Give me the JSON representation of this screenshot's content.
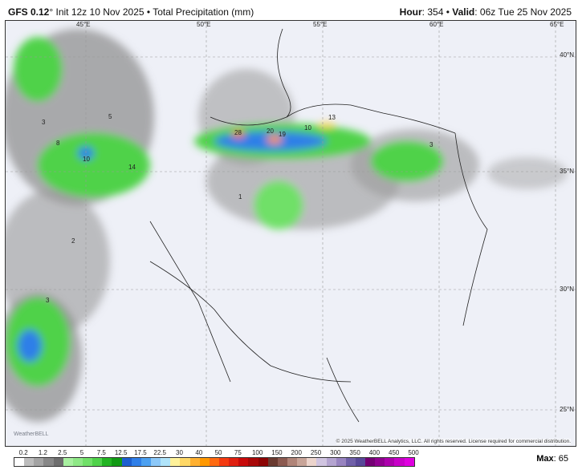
{
  "header": {
    "model": "GFS 0.12",
    "model_suffix": "° Init 12z 10 Nov 2025 • Total Precipitation (mm)",
    "hour_label": "Hour",
    "hour_value": ": 354 • ",
    "valid_label": "Valid",
    "valid_value": ": 06z Tue 25 Nov 2025"
  },
  "map": {
    "lon_labels": [
      "45°E",
      "50°E",
      "55°E",
      "60°E",
      "65°E"
    ],
    "lat_labels": [
      "40°N",
      "35°N",
      "30°N",
      "25°N"
    ],
    "contour_labels": [
      "28",
      "20",
      "19",
      "10",
      "13",
      "10",
      "14",
      "5",
      "3",
      "8",
      "3",
      "2",
      "1",
      "3"
    ],
    "copyright": "© 2025 WeatherBELL Analytics, LLC. All rights reserved. License required for commercial distribution.",
    "logo": "WeatherBELL"
  },
  "legend": {
    "ticks": [
      "0.2",
      "1.2",
      "2.5",
      "5",
      "7.5",
      "12.5",
      "17.5",
      "22.5",
      "30",
      "40",
      "50",
      "75",
      "100",
      "150",
      "200",
      "250",
      "300",
      "350",
      "400",
      "450",
      "500"
    ],
    "colors": [
      "#ffffff",
      "#bdbdbd",
      "#a3a3a3",
      "#878787",
      "#6e6e6e",
      "#a8f0a0",
      "#8ee886",
      "#70e068",
      "#4fd24a",
      "#22b422",
      "#119a14",
      "#1d5fd0",
      "#2f7fe8",
      "#4ca0f0",
      "#8cc8f8",
      "#b0e4fa",
      "#fff29a",
      "#ffd866",
      "#ffb030",
      "#ff9800",
      "#ff6a10",
      "#f43a10",
      "#e02010",
      "#c80a0a",
      "#a80808",
      "#8c0404",
      "#6a3a30",
      "#8c5a50",
      "#b08478",
      "#c8a498",
      "#ecd4cc",
      "#d0c4e0",
      "#b4a4d0",
      "#9884c0",
      "#7060a8",
      "#584898",
      "#740074",
      "#900090",
      "#ac00ac",
      "#c800c8",
      "#e000e0"
    ],
    "max_label": "Max",
    "max_value": ": 65"
  }
}
